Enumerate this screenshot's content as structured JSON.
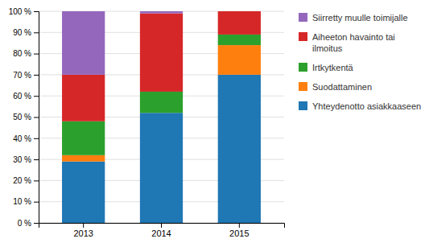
{
  "chart_data": {
    "type": "bar",
    "stacked": true,
    "categories": [
      "2013",
      "2014",
      "2015"
    ],
    "series": [
      {
        "name": "Yhteydenotto asiakkaaseen",
        "values": [
          29,
          52,
          70
        ]
      },
      {
        "name": "Suodattaminen",
        "values": [
          3,
          0,
          14
        ]
      },
      {
        "name": "Irtkytkentä",
        "values": [
          16,
          10,
          5
        ]
      },
      {
        "name": "Aiheeton havainto tai\nilmoitus",
        "values": [
          22,
          37,
          11
        ]
      },
      {
        "name": "Siirretty muulle toimijalle",
        "values": [
          30,
          1,
          0
        ]
      }
    ],
    "ylim": [
      0,
      100
    ],
    "yticks": [
      {
        "value": 0,
        "label": "0 %"
      },
      {
        "value": 10,
        "label": "10 %"
      },
      {
        "value": 20,
        "label": "20 %"
      },
      {
        "value": 30,
        "label": "30 %"
      },
      {
        "value": 40,
        "label": "40 %"
      },
      {
        "value": 50,
        "label": "50 %"
      },
      {
        "value": 60,
        "label": "60 %"
      },
      {
        "value": 70,
        "label": "70 %"
      },
      {
        "value": 80,
        "label": "80 %"
      },
      {
        "value": 90,
        "label": "90 %"
      },
      {
        "value": 100,
        "label": "100 %"
      }
    ],
    "grid": true,
    "legend": "right"
  }
}
